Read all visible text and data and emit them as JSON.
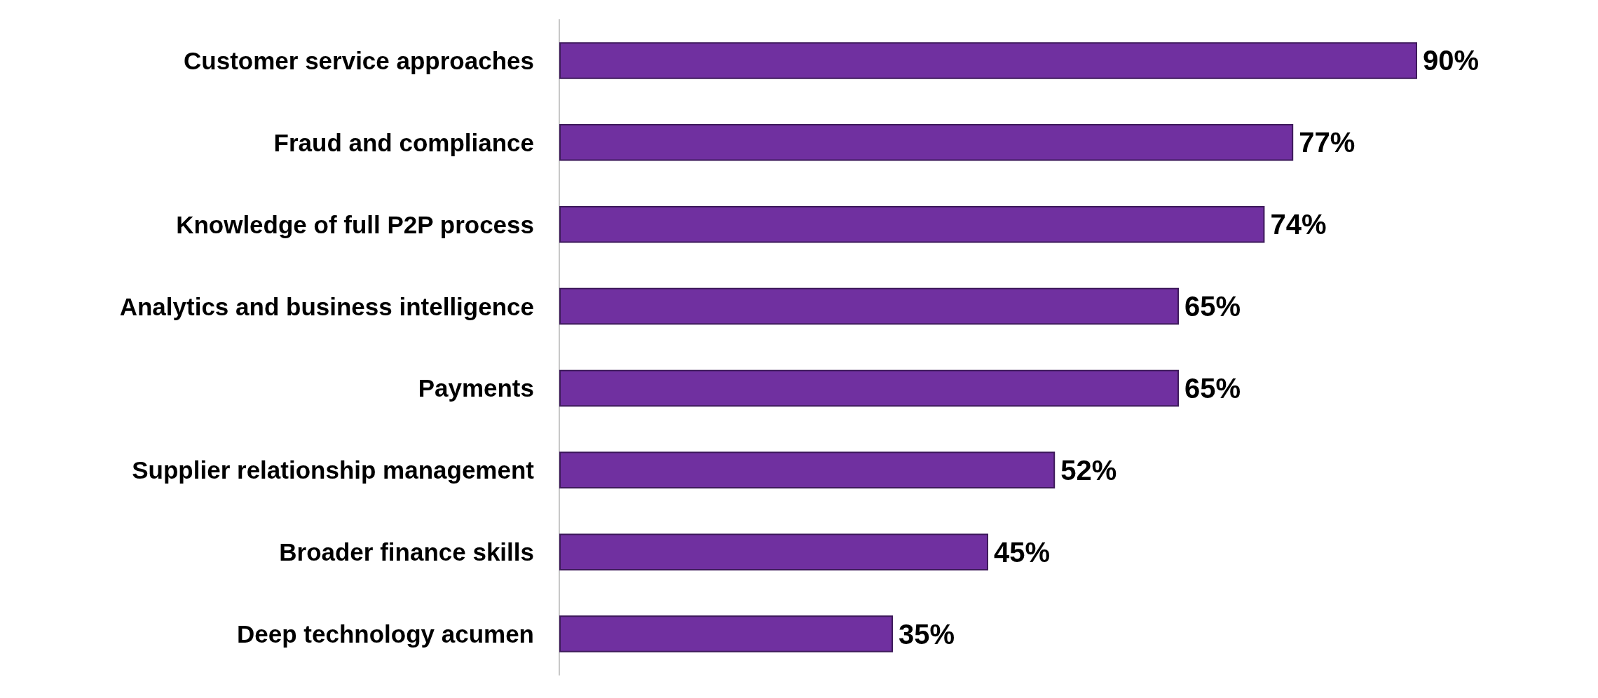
{
  "chart_data": {
    "type": "bar",
    "orientation": "horizontal",
    "categories": [
      "Customer service approaches",
      "Fraud and compliance",
      "Knowledge of full P2P process",
      "Analytics and business intelligence",
      "Payments",
      "Supplier relationship management",
      "Broader finance skills",
      "Deep technology acumen"
    ],
    "values": [
      90,
      77,
      74,
      65,
      65,
      52,
      45,
      35
    ],
    "value_labels": [
      "90%",
      "77%",
      "74%",
      "65%",
      "65%",
      "52%",
      "45%",
      "35%"
    ],
    "color": "#7030a0",
    "tick_labels": "y"
  }
}
